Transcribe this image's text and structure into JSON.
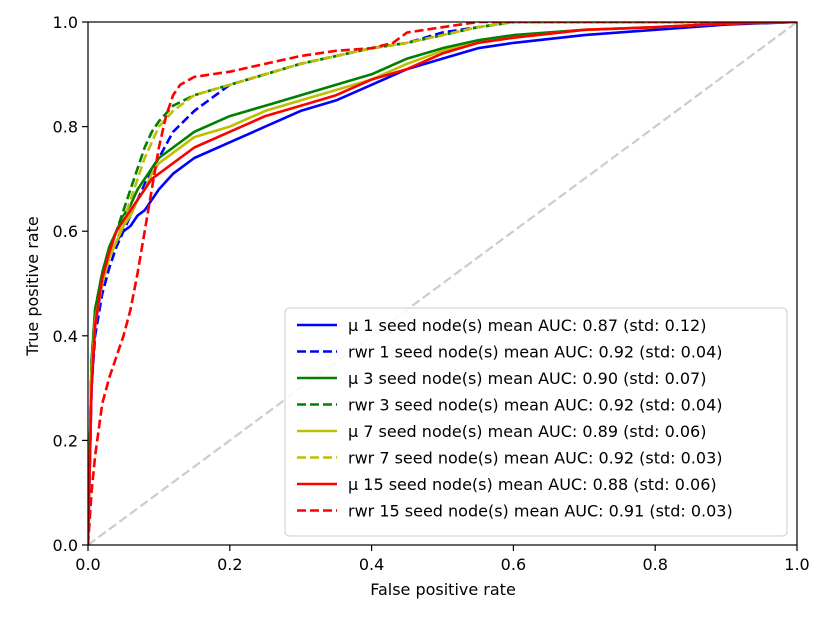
{
  "chart_data": {
    "type": "line",
    "title": "",
    "xlabel": "False positive rate",
    "ylabel": "True positive rate",
    "xlim": [
      0.0,
      1.0
    ],
    "ylim": [
      0.0,
      1.0
    ],
    "xticks": [
      "0.0",
      "0.2",
      "0.4",
      "0.6",
      "0.8",
      "1.0"
    ],
    "yticks": [
      "0.0",
      "0.2",
      "0.4",
      "0.6",
      "0.8",
      "1.0"
    ],
    "grid": false,
    "legend_position": "lower-right",
    "reference_line": {
      "x": [
        0,
        1
      ],
      "y": [
        0,
        1
      ],
      "color": "#cccccc",
      "style": "dashed"
    },
    "series": [
      {
        "name": "μ 1 seed node(s) mean AUC: 0.87 (std: 0.12)",
        "color": "#0000ff",
        "style": "solid",
        "x": [
          0,
          0.005,
          0.01,
          0.02,
          0.03,
          0.04,
          0.05,
          0.06,
          0.07,
          0.08,
          0.09,
          0.1,
          0.12,
          0.15,
          0.2,
          0.25,
          0.3,
          0.35,
          0.4,
          0.45,
          0.5,
          0.55,
          0.6,
          0.7,
          0.8,
          0.9,
          1.0
        ],
        "y": [
          0,
          0.3,
          0.42,
          0.5,
          0.55,
          0.58,
          0.6,
          0.61,
          0.63,
          0.64,
          0.66,
          0.68,
          0.71,
          0.74,
          0.77,
          0.8,
          0.83,
          0.85,
          0.88,
          0.91,
          0.93,
          0.95,
          0.96,
          0.975,
          0.985,
          0.995,
          1.0
        ]
      },
      {
        "name": "rwr 1 seed node(s) mean AUC: 0.92 (std: 0.04)",
        "color": "#0000ff",
        "style": "dashed",
        "x": [
          0,
          0.005,
          0.01,
          0.02,
          0.03,
          0.04,
          0.05,
          0.06,
          0.07,
          0.08,
          0.09,
          0.1,
          0.12,
          0.15,
          0.18,
          0.2,
          0.25,
          0.3,
          0.35,
          0.4,
          0.45,
          0.5,
          0.55,
          0.6,
          0.7,
          0.8,
          1.0
        ],
        "y": [
          0,
          0.3,
          0.4,
          0.48,
          0.53,
          0.57,
          0.6,
          0.63,
          0.66,
          0.69,
          0.72,
          0.74,
          0.79,
          0.83,
          0.86,
          0.88,
          0.9,
          0.92,
          0.935,
          0.95,
          0.96,
          0.98,
          0.99,
          1.0,
          1.0,
          1.0,
          1.0
        ]
      },
      {
        "name": "μ 3 seed node(s) mean AUC: 0.90 (std: 0.07)",
        "color": "#008000",
        "style": "solid",
        "x": [
          0,
          0.005,
          0.01,
          0.02,
          0.03,
          0.04,
          0.05,
          0.06,
          0.07,
          0.08,
          0.09,
          0.1,
          0.12,
          0.15,
          0.2,
          0.25,
          0.3,
          0.35,
          0.4,
          0.45,
          0.5,
          0.55,
          0.6,
          0.7,
          0.8,
          0.9,
          1.0
        ],
        "y": [
          0,
          0.35,
          0.45,
          0.52,
          0.57,
          0.6,
          0.63,
          0.65,
          0.68,
          0.7,
          0.72,
          0.74,
          0.76,
          0.79,
          0.82,
          0.84,
          0.86,
          0.88,
          0.9,
          0.93,
          0.95,
          0.965,
          0.975,
          0.985,
          0.99,
          0.997,
          1.0
        ]
      },
      {
        "name": "rwr 3 seed node(s) mean AUC: 0.92 (std: 0.04)",
        "color": "#008000",
        "style": "dashed",
        "x": [
          0,
          0.005,
          0.01,
          0.02,
          0.03,
          0.04,
          0.05,
          0.06,
          0.07,
          0.08,
          0.09,
          0.1,
          0.12,
          0.15,
          0.2,
          0.25,
          0.3,
          0.35,
          0.4,
          0.45,
          0.5,
          0.55,
          0.6,
          0.7,
          0.8,
          1.0
        ],
        "y": [
          0,
          0.35,
          0.45,
          0.52,
          0.57,
          0.6,
          0.64,
          0.68,
          0.72,
          0.76,
          0.79,
          0.81,
          0.84,
          0.86,
          0.88,
          0.9,
          0.92,
          0.935,
          0.95,
          0.96,
          0.975,
          0.99,
          1.0,
          1.0,
          1.0,
          1.0
        ]
      },
      {
        "name": "μ 7 seed node(s) mean AUC: 0.89 (std: 0.06)",
        "color": "#bfbf00",
        "style": "solid",
        "x": [
          0,
          0.005,
          0.01,
          0.02,
          0.03,
          0.04,
          0.05,
          0.06,
          0.07,
          0.08,
          0.09,
          0.1,
          0.12,
          0.15,
          0.2,
          0.25,
          0.3,
          0.35,
          0.4,
          0.45,
          0.5,
          0.55,
          0.6,
          0.7,
          0.8,
          0.9,
          1.0
        ],
        "y": [
          0,
          0.33,
          0.43,
          0.5,
          0.55,
          0.58,
          0.61,
          0.63,
          0.66,
          0.68,
          0.71,
          0.73,
          0.75,
          0.78,
          0.8,
          0.83,
          0.85,
          0.87,
          0.89,
          0.92,
          0.945,
          0.96,
          0.97,
          0.985,
          0.99,
          0.997,
          1.0
        ]
      },
      {
        "name": "rwr 7 seed node(s) mean AUC: 0.92 (std: 0.03)",
        "color": "#bfbf00",
        "style": "dashed",
        "x": [
          0,
          0.005,
          0.01,
          0.02,
          0.03,
          0.04,
          0.05,
          0.06,
          0.07,
          0.08,
          0.09,
          0.1,
          0.12,
          0.15,
          0.2,
          0.25,
          0.3,
          0.35,
          0.4,
          0.45,
          0.5,
          0.55,
          0.6,
          0.7,
          0.8,
          1.0
        ],
        "y": [
          0,
          0.32,
          0.42,
          0.5,
          0.55,
          0.58,
          0.62,
          0.66,
          0.7,
          0.74,
          0.77,
          0.8,
          0.83,
          0.86,
          0.88,
          0.9,
          0.92,
          0.935,
          0.95,
          0.96,
          0.975,
          0.99,
          1.0,
          1.0,
          1.0,
          1.0
        ]
      },
      {
        "name": "μ 15 seed node(s) mean AUC: 0.88 (std: 0.06)",
        "color": "#ff0000",
        "style": "solid",
        "x": [
          0,
          0.005,
          0.01,
          0.02,
          0.03,
          0.04,
          0.05,
          0.06,
          0.07,
          0.08,
          0.09,
          0.1,
          0.12,
          0.15,
          0.2,
          0.25,
          0.3,
          0.35,
          0.4,
          0.45,
          0.5,
          0.55,
          0.6,
          0.7,
          0.8,
          0.9,
          1.0
        ],
        "y": [
          0,
          0.3,
          0.42,
          0.51,
          0.56,
          0.6,
          0.62,
          0.64,
          0.66,
          0.68,
          0.7,
          0.71,
          0.73,
          0.76,
          0.79,
          0.82,
          0.84,
          0.86,
          0.89,
          0.91,
          0.94,
          0.96,
          0.97,
          0.985,
          0.99,
          0.997,
          1.0
        ]
      },
      {
        "name": "rwr 15 seed node(s) mean AUC: 0.91 (std: 0.03)",
        "color": "#ff0000",
        "style": "dashed",
        "x": [
          0,
          0.005,
          0.01,
          0.02,
          0.03,
          0.04,
          0.05,
          0.06,
          0.07,
          0.08,
          0.09,
          0.1,
          0.11,
          0.12,
          0.13,
          0.15,
          0.2,
          0.25,
          0.3,
          0.35,
          0.4,
          0.43,
          0.45,
          0.5,
          0.55,
          0.6,
          0.7,
          1.0
        ],
        "y": [
          0,
          0.1,
          0.17,
          0.27,
          0.32,
          0.36,
          0.4,
          0.45,
          0.52,
          0.6,
          0.68,
          0.76,
          0.82,
          0.86,
          0.88,
          0.895,
          0.905,
          0.92,
          0.935,
          0.945,
          0.95,
          0.96,
          0.98,
          0.99,
          1.0,
          1.0,
          1.0,
          1.0
        ]
      }
    ]
  }
}
